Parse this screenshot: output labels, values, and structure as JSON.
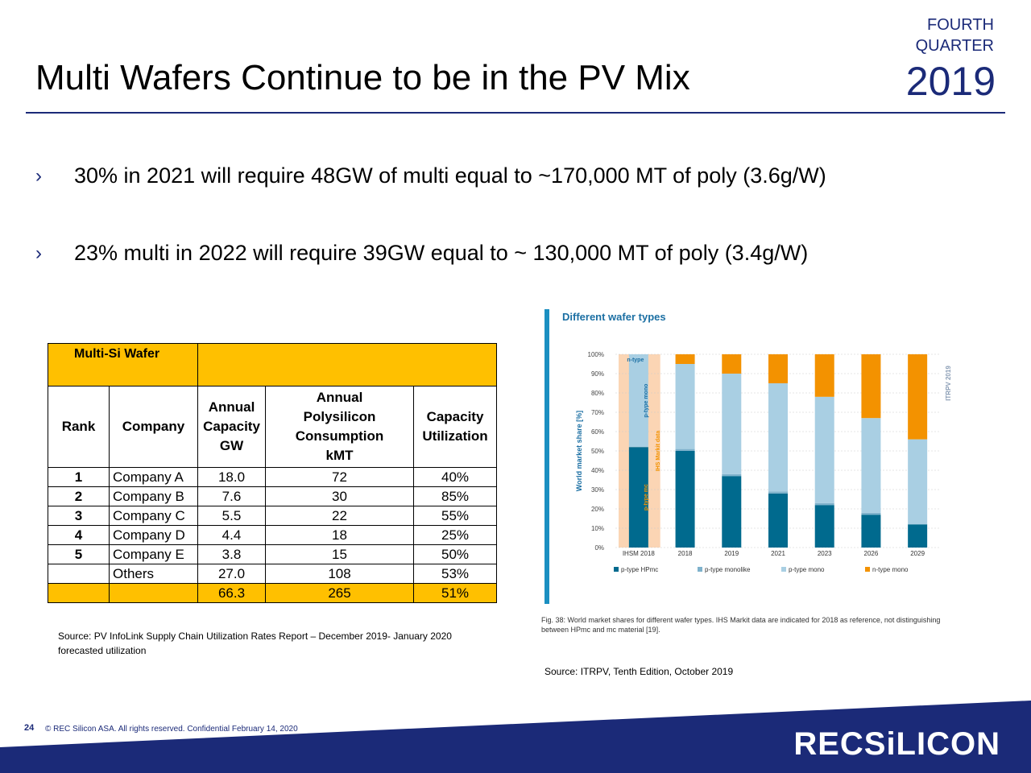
{
  "header": {
    "title": "Multi Wafers Continue to be in the PV Mix",
    "quarter_line1": "FOURTH",
    "quarter_line2": "QUARTER",
    "year": "2019"
  },
  "bullets": [
    "30% in 2021 will require 48GW of multi equal to ~170,000 MT of poly (3.6g/W)",
    "23% multi in 2022 will require 39GW equal to ~ 130,000 MT of poly (3.4g/W)"
  ],
  "bullet_glyph": "›",
  "table": {
    "title": "Multi-Si Wafer",
    "headers": {
      "rank": "Rank",
      "company": "Company",
      "capacity": [
        "Annual",
        "Capacity",
        "GW"
      ],
      "consumption": [
        "Annual",
        "Polysilicon",
        "Consumption",
        "kMT"
      ],
      "utilization": [
        "Capacity",
        "Utilization"
      ]
    },
    "rows": [
      {
        "rank": "1",
        "company": "Company A",
        "capacity": "18.0",
        "consumption": "72",
        "utilization": "40%"
      },
      {
        "rank": "2",
        "company": "Company B",
        "capacity": "7.6",
        "consumption": "30",
        "utilization": "85%"
      },
      {
        "rank": "3",
        "company": "Company C",
        "capacity": "5.5",
        "consumption": "22",
        "utilization": "55%"
      },
      {
        "rank": "4",
        "company": "Company D",
        "capacity": "4.4",
        "consumption": "18",
        "utilization": "25%"
      },
      {
        "rank": "5",
        "company": "Company E",
        "capacity": "3.8",
        "consumption": "15",
        "utilization": "50%"
      },
      {
        "rank": "",
        "company": "Others",
        "capacity": "27.0",
        "consumption": "108",
        "utilization": "53%"
      }
    ],
    "total": {
      "capacity": "66.3",
      "consumption": "265",
      "utilization": "51%"
    }
  },
  "source_left": "Source: PV InfoLink Supply Chain Utilization Rates Report – December 2019- January 2020 forecasted utilization",
  "source_right": "Source: ITRPV, Tenth Edition, October 2019",
  "chart_data": {
    "type": "bar",
    "stacked": true,
    "title": "Different wafer types",
    "ylabel": "World market share [%]",
    "ylim": [
      0,
      100
    ],
    "yticks": [
      "0%",
      "10%",
      "20%",
      "30%",
      "40%",
      "50%",
      "60%",
      "70%",
      "80%",
      "90%",
      "100%"
    ],
    "categories": [
      "IHSM 2018",
      "2018",
      "2019",
      "2021",
      "2023",
      "2026",
      "2029"
    ],
    "series": [
      {
        "name": "p-type HPmc",
        "color": "#006a8e",
        "values": [
          52,
          50,
          37,
          28,
          22,
          17,
          12
        ]
      },
      {
        "name": "p-type monolike",
        "color": "#7fb2cc",
        "values": [
          0,
          1,
          1,
          1,
          1,
          1,
          0
        ]
      },
      {
        "name": "p-type mono",
        "color": "#a9cfe3",
        "values": [
          48,
          44,
          52,
          56,
          55,
          49,
          44
        ]
      },
      {
        "name": "n-type mono",
        "color": "#f39200",
        "values": [
          0,
          5,
          10,
          15,
          22,
          33,
          44
        ]
      }
    ],
    "annotations": {
      "ihs_shade": "IHS Markit data",
      "mono_label": "p-type mono",
      "mc_label": "p-type mc",
      "ntype_label": "n-type",
      "watermark": "ITRPV 2019"
    },
    "legend_position": "bottom",
    "caption": "Fig. 38: World market shares for different wafer types. IHS Markit data are indicated for 2018 as reference, not distinguishing between HPmc and mc material [19]."
  },
  "footer": {
    "page_number": "24",
    "copyright": "© REC Silicon ASA. All rights reserved. Confidential February 14, 2020",
    "logo_text": "RECSiLICON",
    "brand_color": "#1b2a78",
    "highlight_color": "#ffc000"
  }
}
